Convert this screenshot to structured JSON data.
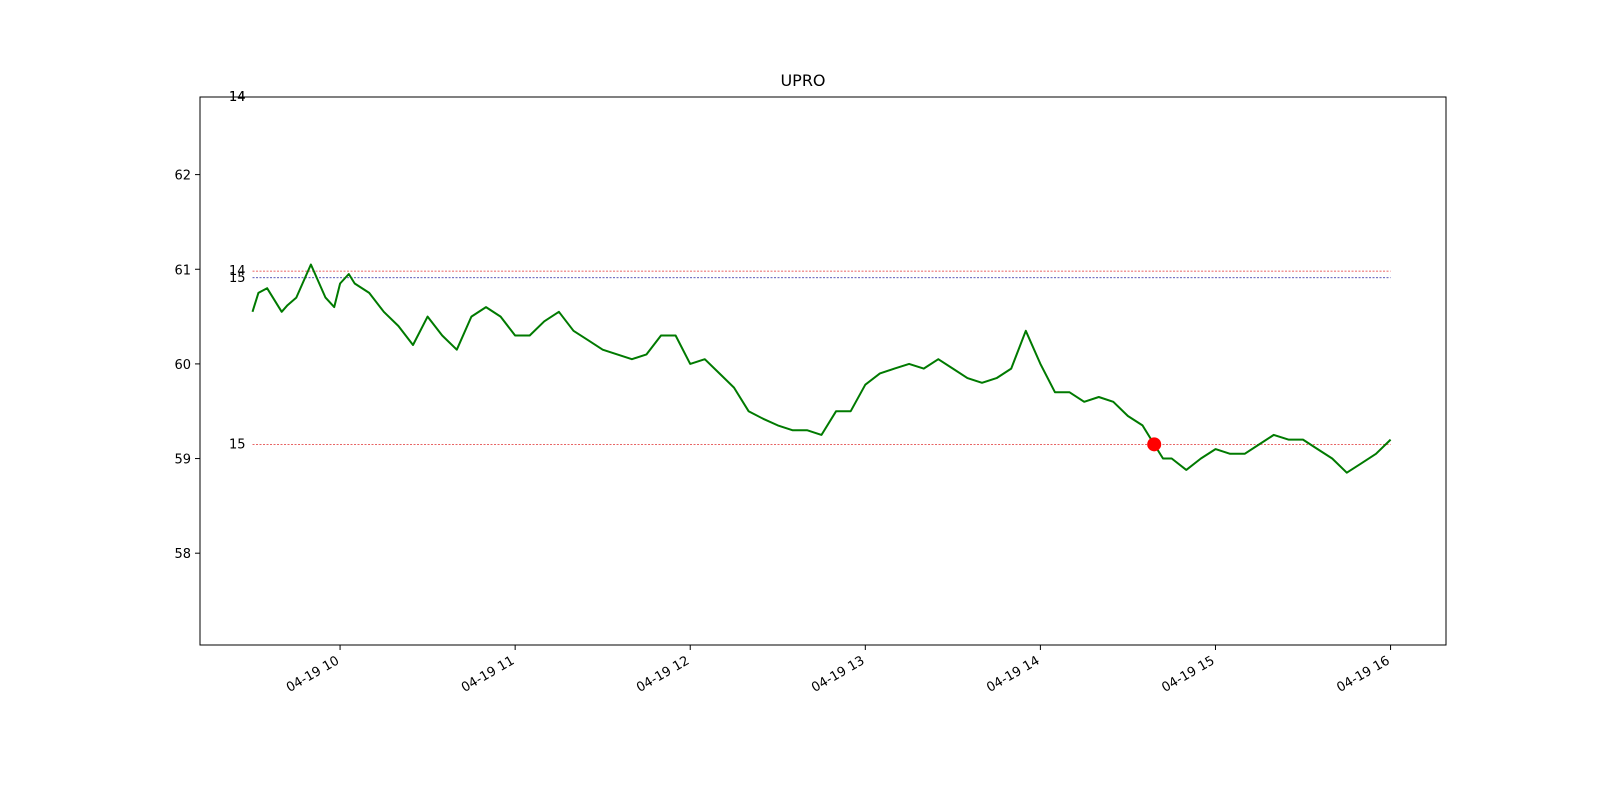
{
  "chart_data": {
    "type": "line",
    "title": "UPRO",
    "xlabel": "",
    "ylabel": "",
    "x_range": [
      "04-19 09:12",
      "04-19 16:19"
    ],
    "ylim": [
      57.03,
      62.82
    ],
    "y_ticks": [
      58,
      59,
      60,
      61,
      62
    ],
    "x_ticks": [
      {
        "t": "04-19 10:00",
        "label": "04-19 10"
      },
      {
        "t": "04-19 11:00",
        "label": "04-19 11"
      },
      {
        "t": "04-19 12:00",
        "label": "04-19 12"
      },
      {
        "t": "04-19 13:00",
        "label": "04-19 13"
      },
      {
        "t": "04-19 14:00",
        "label": "04-19 14"
      },
      {
        "t": "04-19 15:00",
        "label": "04-19 15"
      },
      {
        "t": "04-19 16:00",
        "label": "04-19 16"
      }
    ],
    "grid": false,
    "colors": {
      "price": "#007a00",
      "marker": "#ff0000",
      "level_red": "#e03030",
      "level_blue": "#2020a0",
      "level_black": "#000000"
    },
    "series": [
      {
        "x": [
          "04-19 09:30",
          "04-19 09:32",
          "04-19 09:35",
          "04-19 09:40",
          "04-19 09:42",
          "04-19 09:45",
          "04-19 09:50",
          "04-19 09:55",
          "04-19 09:58",
          "04-19 10:00",
          "04-19 10:03",
          "04-19 10:05",
          "04-19 10:10",
          "04-19 10:15",
          "04-19 10:20",
          "04-19 10:25",
          "04-19 10:30",
          "04-19 10:35",
          "04-19 10:40",
          "04-19 10:45",
          "04-19 10:50",
          "04-19 10:55",
          "04-19 11:00",
          "04-19 11:05",
          "04-19 11:10",
          "04-19 11:15",
          "04-19 11:20",
          "04-19 11:25",
          "04-19 11:30",
          "04-19 11:35",
          "04-19 11:40",
          "04-19 11:45",
          "04-19 11:50",
          "04-19 11:55",
          "04-19 12:00",
          "04-19 12:05",
          "04-19 12:10",
          "04-19 12:15",
          "04-19 12:20",
          "04-19 12:25",
          "04-19 12:30",
          "04-19 12:35",
          "04-19 12:40",
          "04-19 12:45",
          "04-19 12:50",
          "04-19 12:55",
          "04-19 13:00",
          "04-19 13:05",
          "04-19 13:10",
          "04-19 13:15",
          "04-19 13:20",
          "04-19 13:25",
          "04-19 13:30",
          "04-19 13:35",
          "04-19 13:40",
          "04-19 13:45",
          "04-19 13:50",
          "04-19 13:55",
          "04-19 14:00",
          "04-19 14:05",
          "04-19 14:10",
          "04-19 14:15",
          "04-19 14:20",
          "04-19 14:25",
          "04-19 14:30",
          "04-19 14:35",
          "04-19 14:39",
          "04-19 14:42",
          "04-19 14:45",
          "04-19 14:50",
          "04-19 14:55",
          "04-19 15:00",
          "04-19 15:05",
          "04-19 15:10",
          "04-19 15:15",
          "04-19 15:20",
          "04-19 15:25",
          "04-19 15:30",
          "04-19 15:35",
          "04-19 15:40",
          "04-19 15:45",
          "04-19 15:50",
          "04-19 15:55",
          "04-19 16:00"
        ],
        "y": [
          60.55,
          60.75,
          60.8,
          60.55,
          60.62,
          60.7,
          61.05,
          60.7,
          60.6,
          60.85,
          60.95,
          60.85,
          60.75,
          60.55,
          60.4,
          60.2,
          60.5,
          60.3,
          60.15,
          60.5,
          60.6,
          60.5,
          60.3,
          60.3,
          60.45,
          60.55,
          60.35,
          60.25,
          60.15,
          60.1,
          60.05,
          60.1,
          60.3,
          60.3,
          60.0,
          60.05,
          59.9,
          59.75,
          59.5,
          59.42,
          59.35,
          59.3,
          59.3,
          59.25,
          59.5,
          59.5,
          59.78,
          59.9,
          59.95,
          60.0,
          59.95,
          60.05,
          59.95,
          59.85,
          59.8,
          59.85,
          59.95,
          60.35,
          60.0,
          59.7,
          59.7,
          59.6,
          59.65,
          59.6,
          59.45,
          59.35,
          59.15,
          59.0,
          59.0,
          58.88,
          59.0,
          59.1,
          59.05,
          59.05,
          59.15,
          59.25,
          59.2,
          59.2,
          59.1,
          59.0,
          58.85,
          58.95,
          59.05,
          59.2
        ]
      }
    ],
    "marker": {
      "x": "04-19 14:39",
      "y": 59.15
    },
    "levels": [
      {
        "y": 62.82,
        "label": "14",
        "color": "level_black"
      },
      {
        "y": 62.82,
        "label": "14",
        "color": "level_blue"
      },
      {
        "y": 60.98,
        "label": "14",
        "color": "level_red"
      },
      {
        "y": 60.91,
        "label": "15",
        "color": "level_blue"
      },
      {
        "y": 59.15,
        "label": "15",
        "color": "level_red"
      }
    ]
  }
}
